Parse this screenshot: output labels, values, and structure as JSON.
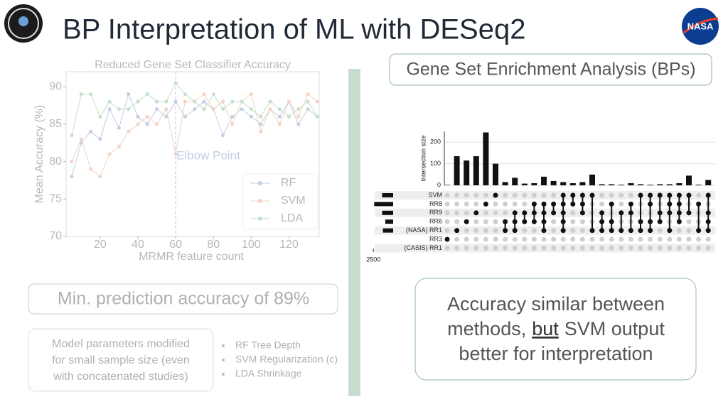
{
  "header": {
    "title": "BP Interpretation of ML with DESeq2",
    "logo_text": "NASA"
  },
  "chart_data": [
    {
      "type": "line",
      "title": "Reduced Gene Set Classifier Accuracy",
      "xlabel": "MRMR feature count",
      "ylabel": "Mean Accuracy (%)",
      "x": [
        5,
        10,
        15,
        20,
        25,
        30,
        35,
        40,
        45,
        50,
        55,
        60,
        65,
        70,
        75,
        80,
        85,
        90,
        95,
        100,
        105,
        110,
        115,
        120,
        125,
        130,
        135
      ],
      "series": [
        {
          "name": "RF",
          "color": "#4c72b0",
          "values": [
            78,
            82.5,
            84,
            83,
            87,
            84.5,
            89,
            86,
            85,
            87,
            86,
            88,
            86,
            87,
            88,
            87,
            83.5,
            86,
            87,
            86,
            85,
            87,
            86,
            88,
            85,
            87,
            86
          ]
        },
        {
          "name": "SVM",
          "color": "#dd8452",
          "values": [
            80,
            83,
            79,
            78,
            81,
            82,
            84,
            85,
            86,
            85,
            87,
            81,
            88,
            88,
            89,
            87,
            88,
            85,
            88,
            89,
            84,
            87,
            85,
            88,
            86,
            89,
            88
          ]
        },
        {
          "name": "LDA",
          "color": "#55a868",
          "values": [
            83.5,
            89,
            89,
            86,
            88,
            87,
            87,
            88,
            89,
            88,
            88,
            90.5,
            89,
            88,
            87,
            89,
            87,
            88,
            88,
            87,
            86,
            88,
            87,
            86,
            87,
            88,
            86
          ]
        }
      ],
      "xlim": [
        2,
        136
      ],
      "ylim": [
        70,
        92
      ],
      "xticks": [
        20,
        40,
        60,
        80,
        100,
        120
      ],
      "yticks": [
        70,
        75,
        80,
        85,
        90
      ],
      "annotation": {
        "text": "Elbow Point",
        "x": 60
      },
      "legend": "lower right"
    },
    {
      "type": "upset",
      "ylabel": "Intersection size",
      "sets": [
        "SVM",
        "RR8",
        "RR9",
        "RR6",
        "(NASA) RR1",
        "RR3",
        "(CASIS) RR1"
      ],
      "set_sizes": [
        1400,
        2400,
        1400,
        1000,
        1300,
        0,
        0
      ],
      "set_xlim": [
        0,
        2700
      ],
      "set_xticks": [
        2500
      ],
      "intersections": [
        2,
        135,
        115,
        135,
        245,
        100,
        15,
        35,
        8,
        10,
        40,
        20,
        15,
        10,
        15,
        50,
        5,
        5,
        3,
        10,
        5,
        3,
        5,
        5,
        10,
        45,
        3,
        25
      ],
      "membership": [
        [
          5
        ],
        [
          4
        ],
        [
          3
        ],
        [
          2
        ],
        [
          1
        ],
        [
          0
        ],
        [
          3,
          4
        ],
        [
          2,
          3,
          4
        ],
        [
          2,
          3
        ],
        [
          1,
          2,
          3
        ],
        [
          1,
          2,
          3,
          4
        ],
        [
          1,
          2
        ],
        [
          0,
          1,
          2,
          3,
          4
        ],
        [
          0,
          1
        ],
        [
          0,
          1,
          2
        ],
        [
          0,
          4
        ],
        [
          2,
          3,
          4
        ],
        [
          1,
          3,
          4
        ],
        [
          2,
          4
        ],
        [
          1,
          2,
          4
        ],
        [
          0,
          3,
          4
        ],
        [
          0,
          1,
          3,
          4
        ],
        [
          0,
          2,
          3
        ],
        [
          0,
          1,
          2,
          4
        ],
        [
          0,
          1,
          2,
          3
        ],
        [
          0,
          2
        ],
        [
          1,
          4
        ],
        [
          0,
          2,
          3,
          4
        ]
      ],
      "ylim": [
        0,
        250
      ],
      "yticks": [
        0,
        100,
        200
      ],
      "color": "#111111"
    }
  ],
  "gsea_box": "Gene Set Enrichment Analysis (BPs)",
  "accuracy_box": "Min. prediction accuracy of 89%",
  "model_box": [
    "Model parameters modified",
    "for small sample size (even",
    "with concatenated studies)"
  ],
  "bullets": [
    "RF Tree Depth",
    "SVM Regularization (c)",
    "LDA Shrinkage"
  ],
  "summary": {
    "line1": "Accuracy similar between",
    "line2a": "methods,",
    "line2b": "but",
    "line2c": "SVM output",
    "line3": "better for interpretation"
  }
}
